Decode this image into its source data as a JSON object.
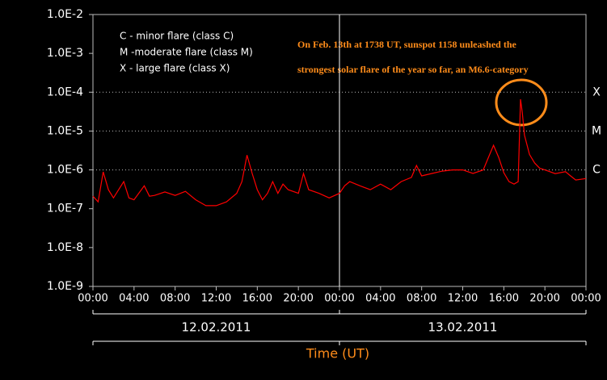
{
  "chart_data": {
    "type": "line",
    "xlabel": "Time (UT)",
    "date_labels": [
      "12.02.2011",
      "13.02.2011"
    ],
    "legend_text": [
      "C - minor flare (class C)",
      "M -moderate flare (class M)",
      "X - large flare (class X)"
    ],
    "annotation": [
      "On Feb. 13th at 1738 UT, sunspot 1158 unleashed the",
      "strongest solar flare of the year so far, an M6.6-category"
    ],
    "ylog": true,
    "ylim": [
      1e-09,
      0.01
    ],
    "yticks": [
      {
        "value": 1e-09,
        "label": "1.0E-9"
      },
      {
        "value": 1e-08,
        "label": "1.0E-8"
      },
      {
        "value": 1e-07,
        "label": "1.0E-7"
      },
      {
        "value": 1e-06,
        "label": "1.0E-6"
      },
      {
        "value": 1e-05,
        "label": "1.0E-5"
      },
      {
        "value": 0.0001,
        "label": "1.0E-4"
      },
      {
        "value": 0.001,
        "label": "1.0E-3"
      },
      {
        "value": 0.01,
        "label": "1.0E-2"
      }
    ],
    "levels": [
      {
        "value": 0.0001,
        "label": "X"
      },
      {
        "value": 1e-05,
        "label": "M"
      },
      {
        "value": 1e-06,
        "label": "C"
      }
    ],
    "xlim": [
      0,
      48
    ],
    "xticks": [
      {
        "value": 0,
        "label": "00:00"
      },
      {
        "value": 4,
        "label": "04:00"
      },
      {
        "value": 8,
        "label": "08:00"
      },
      {
        "value": 12,
        "label": "12:00"
      },
      {
        "value": 16,
        "label": "16:00"
      },
      {
        "value": 20,
        "label": "20:00"
      },
      {
        "value": 24,
        "label": "00:00"
      },
      {
        "value": 28,
        "label": "04:00"
      },
      {
        "value": 32,
        "label": "08:00"
      },
      {
        "value": 36,
        "label": "12:00"
      },
      {
        "value": 40,
        "label": "16:00"
      },
      {
        "value": 44,
        "label": "20:00"
      },
      {
        "value": 48,
        "label": "00:00"
      }
    ],
    "x": [
      0,
      0.5,
      1,
      1.5,
      2,
      3,
      3.5,
      4,
      5,
      5.5,
      6,
      7,
      8,
      9,
      10,
      11,
      12,
      13,
      14,
      14.5,
      15,
      15.5,
      16,
      16.5,
      17,
      17.5,
      18,
      18.5,
      19,
      20,
      20.5,
      21,
      22,
      23,
      24,
      24.5,
      25,
      26,
      27,
      28,
      29,
      30,
      31,
      31.5,
      32,
      33,
      34,
      35,
      36,
      37,
      38,
      38.5,
      39,
      39.5,
      40,
      40.5,
      41,
      41.4,
      41.63,
      41.8,
      42,
      42.5,
      43,
      43.5,
      44,
      45,
      46,
      46.5,
      47,
      48
    ],
    "series": [
      {
        "color": "#ff0000",
        "values": [
          2.1e-07,
          1.5e-07,
          8.9e-07,
          3.1e-07,
          1.9e-07,
          5e-07,
          1.9e-07,
          1.7e-07,
          3.9e-07,
          2.1e-07,
          2.2e-07,
          2.7e-07,
          2.2e-07,
          2.8e-07,
          1.7e-07,
          1.2e-07,
          1.2e-07,
          1.5e-07,
          2.5e-07,
          5e-07,
          2.4e-06,
          8.1e-07,
          3.1e-07,
          1.7e-07,
          2.5e-07,
          5e-07,
          2.5e-07,
          4.3e-07,
          3.1e-07,
          2.5e-07,
          8.1e-07,
          3.1e-07,
          2.5e-07,
          1.9e-07,
          2.5e-07,
          3.9e-07,
          5e-07,
          3.9e-07,
          3.1e-07,
          4.3e-07,
          3.1e-07,
          5e-07,
          6.4e-07,
          1.3e-06,
          7e-07,
          8.1e-07,
          9.3e-07,
          1e-06,
          1e-06,
          8.1e-07,
          1e-06,
          2.1e-06,
          4.3e-06,
          2.1e-06,
          8.5e-07,
          5e-07,
          4.3e-07,
          5e-07,
          6.6e-05,
          3e-05,
          8e-06,
          2.5e-06,
          1.5e-06,
          1.1e-06,
          1e-06,
          8e-07,
          9e-07,
          7e-07,
          5.5e-07,
          6e-07
        ]
      }
    ],
    "grid": "levels"
  }
}
